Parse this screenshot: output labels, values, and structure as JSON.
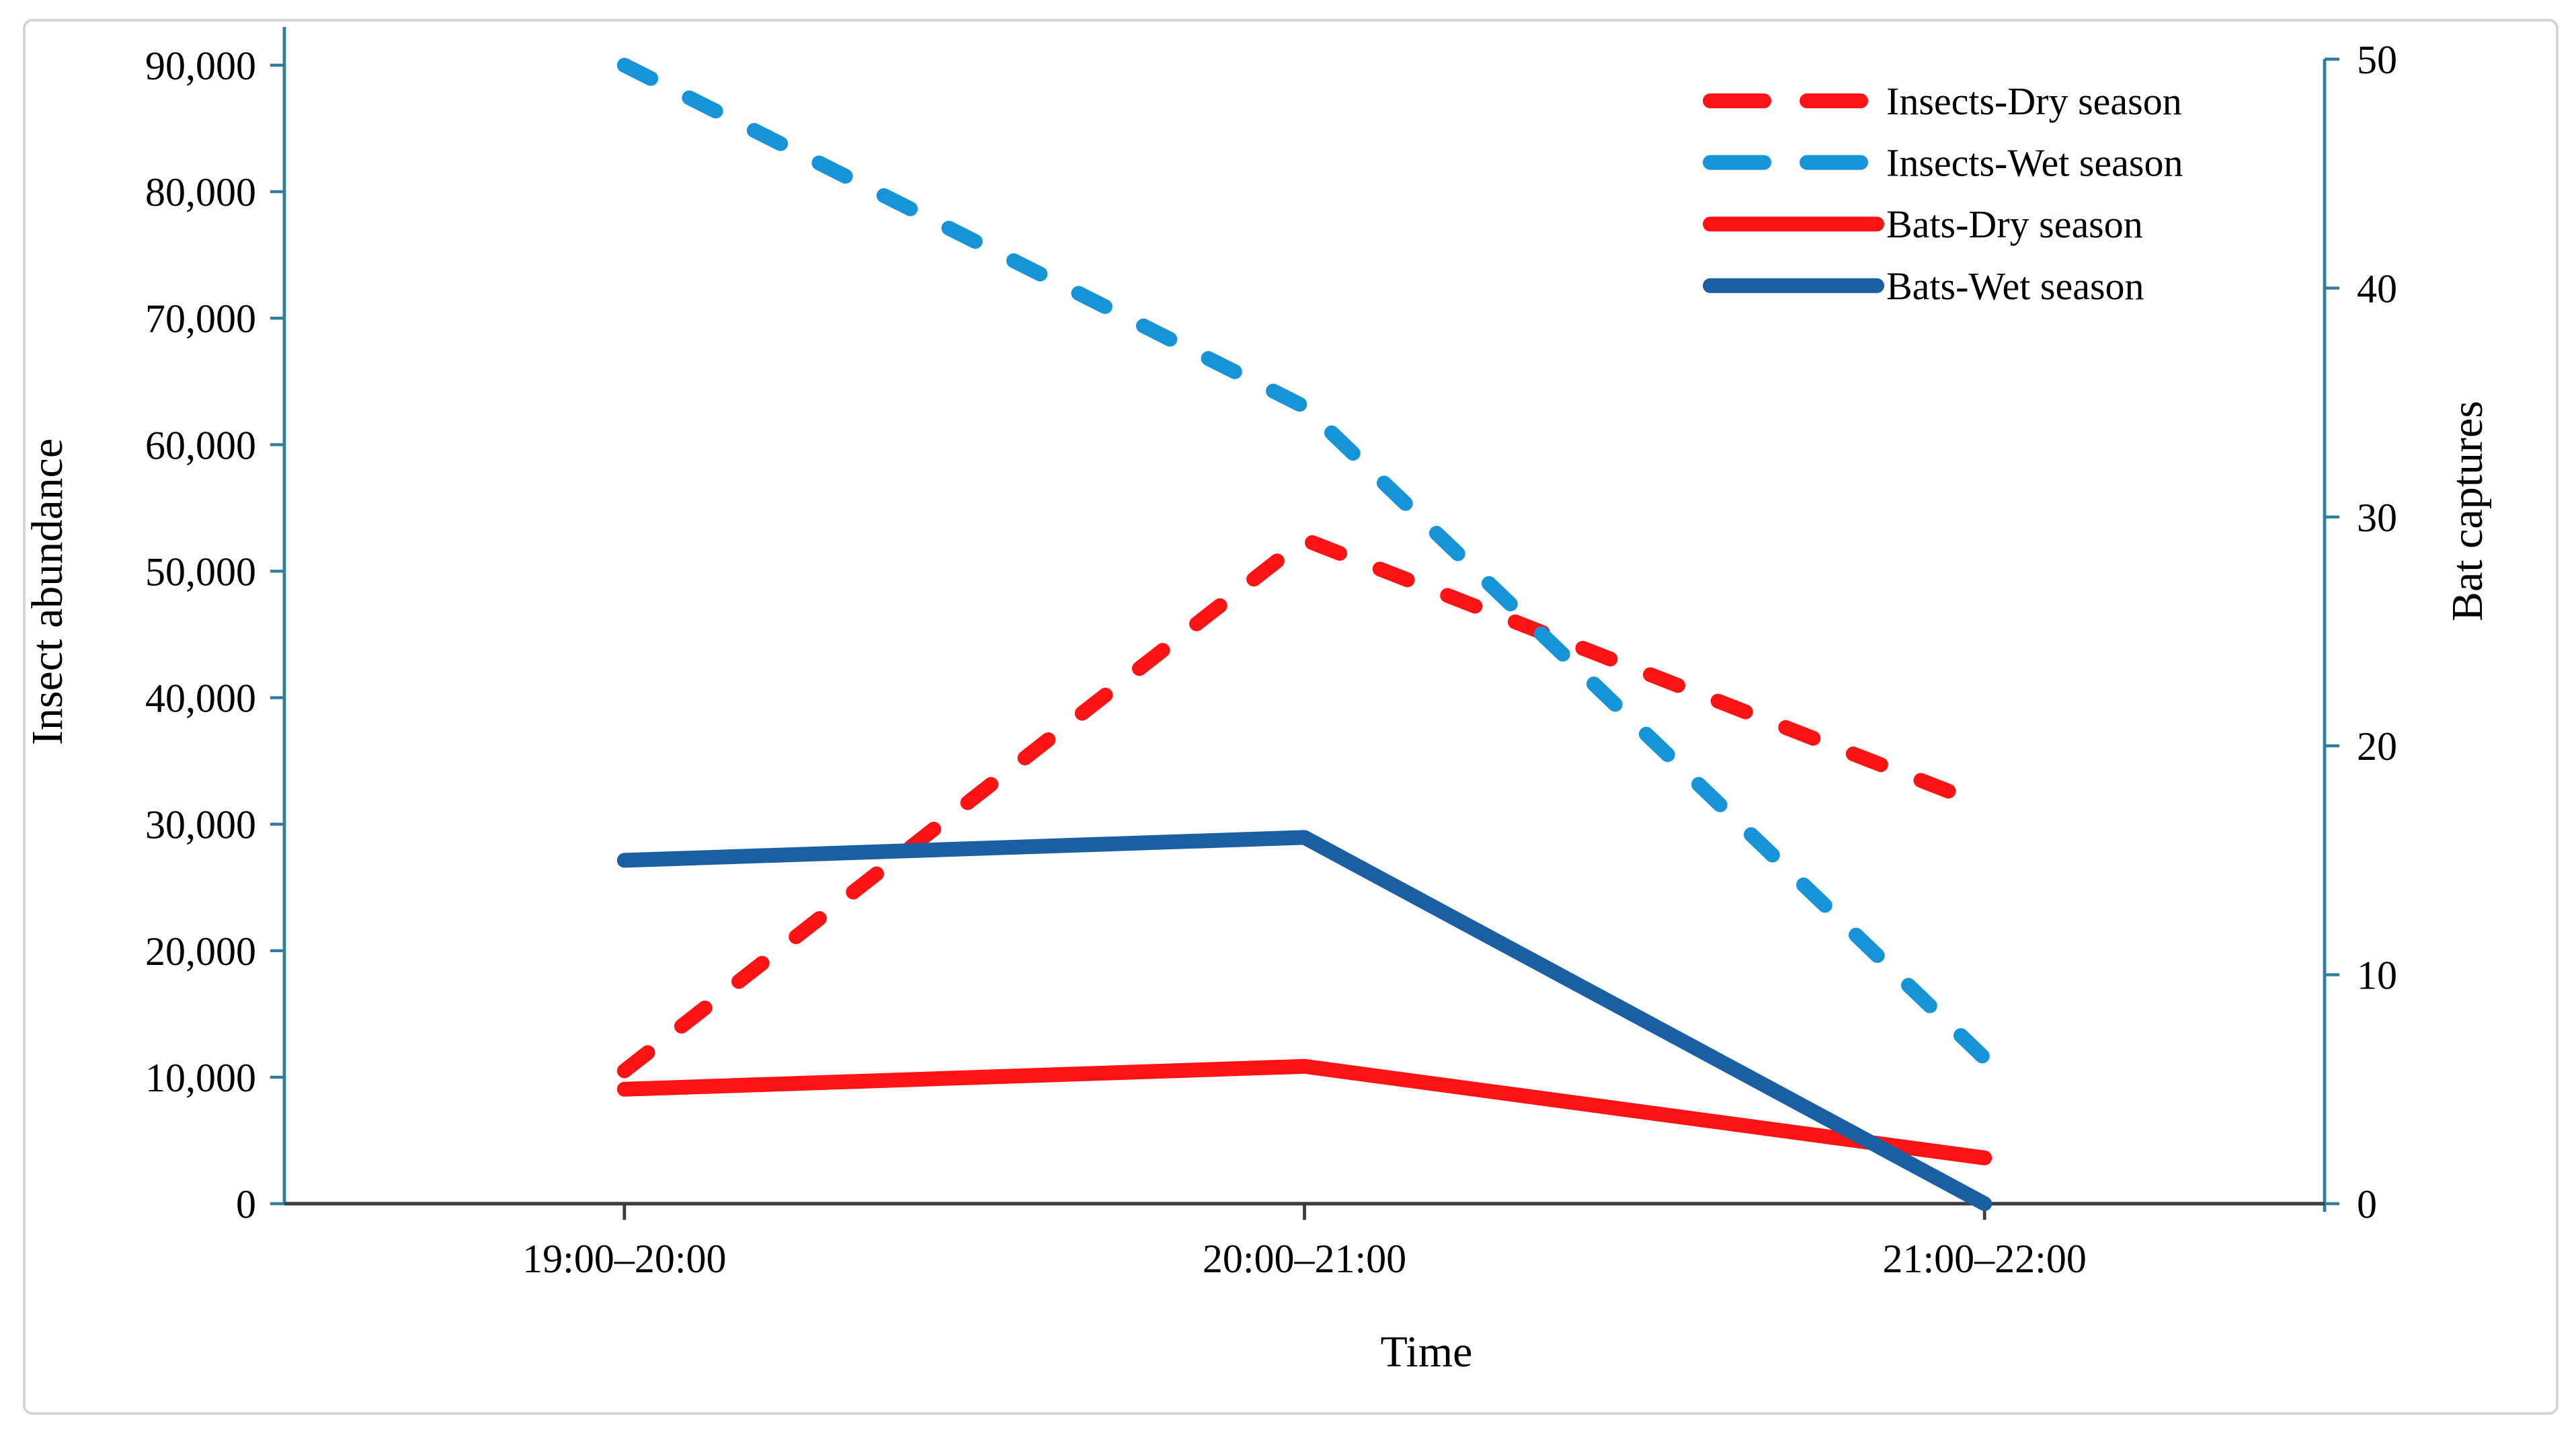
{
  "chart_data": {
    "type": "line",
    "title": "",
    "xlabel": "Time",
    "categories": [
      "19:00–20:00",
      "20:00–21:00",
      "21:00–22:00"
    ],
    "y_left": {
      "label": "Insect abundance",
      "min": 0,
      "max": 90000,
      "step": 10000,
      "tick_labels": [
        "0",
        "10,000",
        "20,000",
        "30,000",
        "40,000",
        "50,000",
        "60,000",
        "70,000",
        "80,000",
        "90,000"
      ]
    },
    "y_right": {
      "label": "Bat captures",
      "min": 0,
      "max": 50,
      "step": 10,
      "tick_labels": [
        "0",
        "10",
        "20",
        "30",
        "40",
        "50"
      ]
    },
    "grid": false,
    "legend_position": "top-right",
    "series": [
      {
        "name": "Insects-Dry season",
        "axis": "left",
        "line_style": "dashed",
        "color": "#FD1313",
        "values": [
          10500,
          52500,
          31500
        ]
      },
      {
        "name": "Insects-Wet season",
        "axis": "left",
        "line_style": "dashed",
        "color": "#1794D7",
        "values": [
          90000,
          63000,
          11500
        ]
      },
      {
        "name": "Bats-Dry season",
        "axis": "right",
        "line_style": "solid",
        "color": "#FD1313",
        "values": [
          5,
          6,
          2
        ]
      },
      {
        "name": "Bats-Wet season",
        "axis": "right",
        "line_style": "solid",
        "color": "#1A5FA3",
        "values": [
          15,
          16,
          0
        ]
      }
    ],
    "colors": {
      "value_axis": "#2E7E9E",
      "category_axis": "#3B3B3B",
      "text": "#000000",
      "figure_border": "#D4D4D4"
    }
  }
}
